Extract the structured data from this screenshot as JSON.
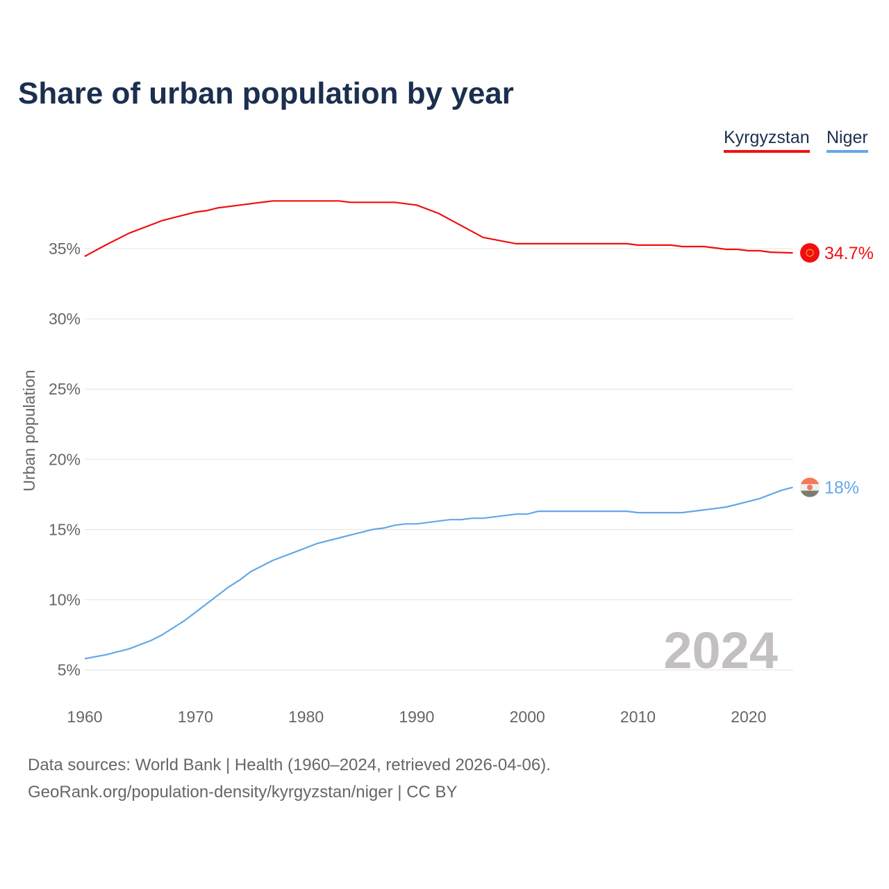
{
  "title": "Share of urban population by year",
  "legend": [
    {
      "label": "Kyrgyzstan",
      "color": "#f20f0f"
    },
    {
      "label": "Niger",
      "color": "#63a8e8"
    }
  ],
  "watermark_year": "2024",
  "sources": {
    "line1": "Data sources: World Bank | Health (1960–2024, retrieved 2026-04-06).",
    "line2": "GeoRank.org/population-density/kyrgyzstan/niger | CC BY"
  },
  "chart_data": {
    "type": "line",
    "title": "Share of urban population by year",
    "xlabel": "",
    "ylabel": "Urban population",
    "xlim": [
      1960,
      2024
    ],
    "ylim": [
      5,
      39
    ],
    "xticks": [
      1960,
      1970,
      1980,
      1990,
      2000,
      2010,
      2020
    ],
    "xtick_labels": [
      "1960",
      "1970",
      "1980",
      "1990",
      "2000",
      "2010",
      "2020"
    ],
    "yticks": [
      5,
      10,
      15,
      20,
      25,
      30,
      35
    ],
    "ytick_labels": [
      "5%",
      "10%",
      "15%",
      "20%",
      "25%",
      "30%",
      "35%"
    ],
    "grid": true,
    "legend_position": "top-right",
    "series": [
      {
        "name": "Kyrgyzstan",
        "color": "#f20f0f",
        "end_label": "34.7%",
        "points": [
          [
            1960,
            34.45
          ],
          [
            1962,
            35.3
          ],
          [
            1964,
            36.1
          ],
          [
            1967,
            37.0
          ],
          [
            1970,
            37.6
          ],
          [
            1971,
            37.7
          ],
          [
            1972,
            37.9
          ],
          [
            1975,
            38.2
          ],
          [
            1977,
            38.4
          ],
          [
            1983,
            38.4
          ],
          [
            1984,
            38.3
          ],
          [
            1988,
            38.3
          ],
          [
            1990,
            38.1
          ],
          [
            1992,
            37.5
          ],
          [
            1996,
            35.8
          ],
          [
            1998,
            35.5
          ],
          [
            1999,
            35.35
          ],
          [
            2009,
            35.35
          ],
          [
            2010,
            35.25
          ],
          [
            2013,
            35.25
          ],
          [
            2014,
            35.15
          ],
          [
            2016,
            35.15
          ],
          [
            2017,
            35.05
          ],
          [
            2018,
            34.95
          ],
          [
            2019,
            34.95
          ],
          [
            2020,
            34.85
          ],
          [
            2021,
            34.85
          ],
          [
            2022,
            34.75
          ],
          [
            2024,
            34.7
          ]
        ]
      },
      {
        "name": "Niger",
        "color": "#63a8e8",
        "end_label": "18%",
        "points": [
          [
            1960,
            5.8
          ],
          [
            1962,
            6.1
          ],
          [
            1963,
            6.3
          ],
          [
            1964,
            6.5
          ],
          [
            1966,
            7.1
          ],
          [
            1967,
            7.5
          ],
          [
            1968,
            8.0
          ],
          [
            1969,
            8.5
          ],
          [
            1970,
            9.1
          ],
          [
            1971,
            9.7
          ],
          [
            1972,
            10.3
          ],
          [
            1973,
            10.9
          ],
          [
            1974,
            11.4
          ],
          [
            1975,
            12.0
          ],
          [
            1977,
            12.8
          ],
          [
            1979,
            13.4
          ],
          [
            1981,
            14.0
          ],
          [
            1983,
            14.4
          ],
          [
            1986,
            15.0
          ],
          [
            1987,
            15.1
          ],
          [
            1988,
            15.3
          ],
          [
            1989,
            15.4
          ],
          [
            1990,
            15.4
          ],
          [
            1993,
            15.7
          ],
          [
            1994,
            15.7
          ],
          [
            1995,
            15.8
          ],
          [
            1996,
            15.8
          ],
          [
            1999,
            16.1
          ],
          [
            2000,
            16.1
          ],
          [
            2001,
            16.3
          ],
          [
            2009,
            16.3
          ],
          [
            2010,
            16.2
          ],
          [
            2014,
            16.2
          ],
          [
            2016,
            16.4
          ],
          [
            2018,
            16.6
          ],
          [
            2019,
            16.8
          ],
          [
            2021,
            17.2
          ],
          [
            2022,
            17.5
          ],
          [
            2023,
            17.8
          ],
          [
            2024,
            18.0
          ]
        ]
      }
    ]
  }
}
